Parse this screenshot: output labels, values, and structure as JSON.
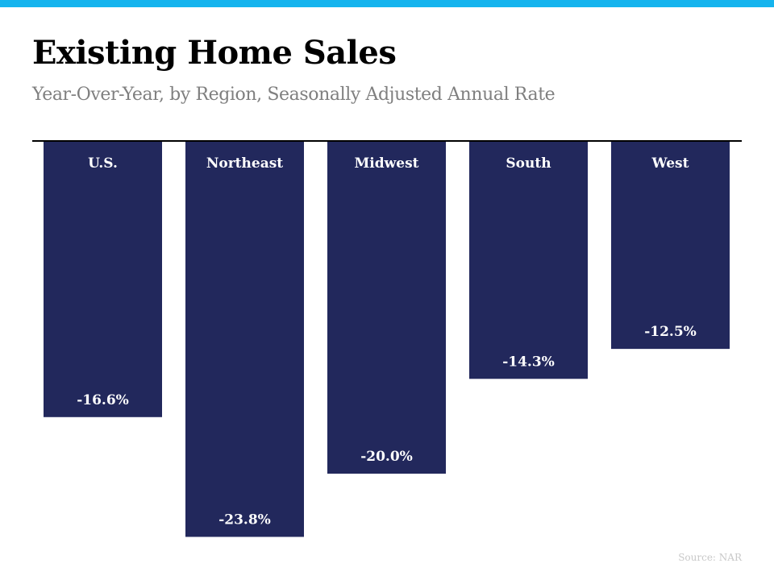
{
  "title": "Existing Home Sales",
  "subtitle": "Year-Over-Year, by Region, Seasonally Adjusted Annual Rate",
  "source": "Source: NAR",
  "colors": {
    "accent_bar": "#15b4ee",
    "bar_fill": "#22285c",
    "bar_text": "#ffffff",
    "baseline": "#000000"
  },
  "chart_data": {
    "type": "bar",
    "title": "Existing Home Sales",
    "subtitle": "Year-Over-Year, by Region, Seasonally Adjusted Annual Rate",
    "categories": [
      "U.S.",
      "Northeast",
      "Midwest",
      "South",
      "West"
    ],
    "values": [
      -16.6,
      -23.8,
      -20.0,
      -14.3,
      -12.5
    ],
    "value_labels": [
      "-16.6%",
      "-23.8%",
      "-20.0%",
      "-14.3%",
      "-12.5%"
    ],
    "ylim": [
      -25,
      0
    ],
    "grid": false,
    "legend": "none"
  }
}
